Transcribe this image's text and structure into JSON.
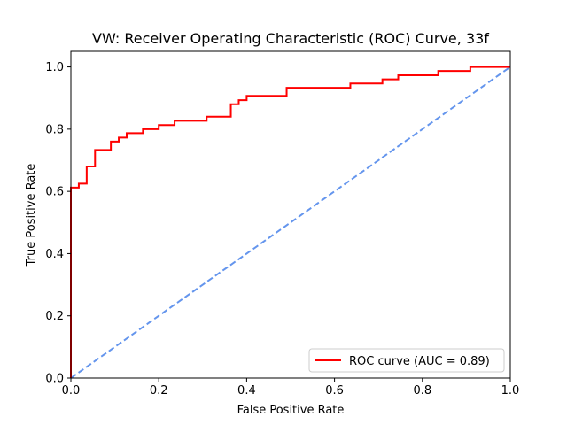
{
  "chart_data": {
    "type": "line",
    "title": "VW: Receiver Operating Characteristic (ROC) Curve, 33f",
    "xlabel": "False Positive Rate",
    "ylabel": "True Positive Rate",
    "xlim": [
      0,
      1
    ],
    "ylim": [
      0,
      1.05
    ],
    "xticks": [
      "0.0",
      "0.2",
      "0.4",
      "0.6",
      "0.8",
      "1.0"
    ],
    "yticks": [
      "0.0",
      "0.2",
      "0.4",
      "0.6",
      "0.8",
      "1.0"
    ],
    "grid": false,
    "legend_position": "lower-right",
    "series": [
      {
        "name": "ROC curve (AUC = 0.89)",
        "color": "#ff0000",
        "style": "solid",
        "step": true,
        "x": [
          0.0,
          0.0,
          0.018,
          0.018,
          0.036,
          0.036,
          0.055,
          0.055,
          0.091,
          0.091,
          0.109,
          0.109,
          0.127,
          0.127,
          0.164,
          0.164,
          0.2,
          0.2,
          0.236,
          0.236,
          0.309,
          0.309,
          0.364,
          0.364,
          0.382,
          0.382,
          0.4,
          0.4,
          0.491,
          0.491,
          0.636,
          0.636,
          0.709,
          0.709,
          0.745,
          0.745,
          0.836,
          0.836,
          0.909,
          0.909,
          1.0
        ],
        "y": [
          0.0,
          0.612,
          0.612,
          0.625,
          0.625,
          0.68,
          0.68,
          0.733,
          0.733,
          0.76,
          0.76,
          0.773,
          0.773,
          0.787,
          0.787,
          0.8,
          0.8,
          0.813,
          0.813,
          0.827,
          0.827,
          0.84,
          0.84,
          0.88,
          0.88,
          0.893,
          0.893,
          0.907,
          0.907,
          0.933,
          0.933,
          0.947,
          0.947,
          0.96,
          0.96,
          0.973,
          0.973,
          0.987,
          0.987,
          1.0,
          1.0
        ]
      },
      {
        "name": "",
        "color": "#6495ed",
        "style": "dashed",
        "x": [
          0,
          1
        ],
        "y": [
          0,
          1
        ]
      }
    ]
  }
}
